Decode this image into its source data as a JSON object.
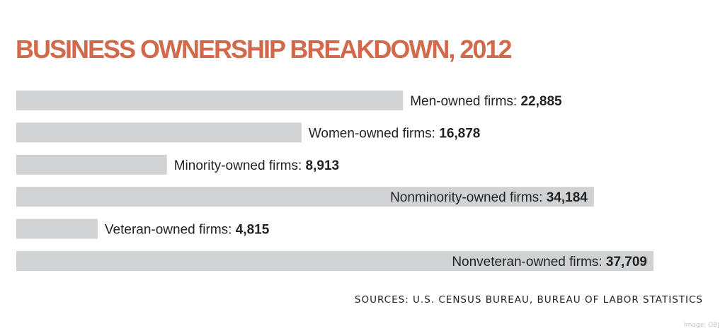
{
  "chart_data": {
    "type": "bar",
    "orientation": "horizontal",
    "title": "BUSINESS OWNERSHIP BREAKDOWN, 2012",
    "categories": [
      "Men-owned firms:",
      "Women-owned firms:",
      "Minority-owned firms:",
      "Nonminority-owned firms:",
      "Veteran-owned firms:",
      "Nonveteran-owned firms:"
    ],
    "values": [
      22885,
      16878,
      8913,
      34184,
      4815,
      37709
    ],
    "value_labels": [
      "22,885",
      "16,878",
      "8,913",
      "34,184",
      "4,815",
      "37,709"
    ],
    "bar_color": "#d1d2d4",
    "title_color": "#d2694b",
    "grid": false,
    "legend": "none"
  },
  "footer": {
    "sources": "SOURCES: U.S. CENSUS BUREAU, BUREAU OF LABOR STATISTICS",
    "credit": "Image: OBJ"
  }
}
